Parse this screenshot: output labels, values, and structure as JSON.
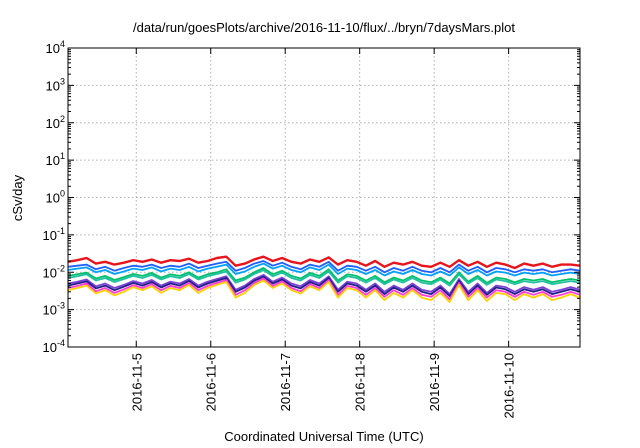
{
  "chart_data": {
    "type": "line",
    "title": "/data/run/goesPlots/archive/2016-11-10/flux/../bryn/7daysMars.plot",
    "xlabel": "Coordinated Universal Time (UTC)",
    "ylabel": "cSv/day",
    "yscale": "log",
    "ylim": [
      0.0001,
      10000
    ],
    "xlim": [
      "2016-11-04T02:00",
      "2016-11-10T23:00"
    ],
    "x_ticks": [
      "2016-11-5",
      "2016-11-6",
      "2016-11-7",
      "2016-11-8",
      "2016-11-9",
      "2016-11-10"
    ],
    "y_ticks": [
      {
        "base": "10",
        "exp": "-4"
      },
      {
        "base": "10",
        "exp": "-3"
      },
      {
        "base": "10",
        "exp": "-2"
      },
      {
        "base": "10",
        "exp": "-1"
      },
      {
        "base": "10",
        "exp": "0"
      },
      {
        "base": "10",
        "exp": "1"
      },
      {
        "base": "10",
        "exp": "2"
      },
      {
        "base": "10",
        "exp": "3"
      },
      {
        "base": "10",
        "exp": "4"
      }
    ],
    "grid": true,
    "legend": "none",
    "x": [
      "2016-11-04T02:00",
      "2016-11-04T05:00",
      "2016-11-04T08:00",
      "2016-11-04T11:00",
      "2016-11-04T14:00",
      "2016-11-04T17:00",
      "2016-11-04T20:00",
      "2016-11-04T23:00",
      "2016-11-05T02:00",
      "2016-11-05T05:00",
      "2016-11-05T08:00",
      "2016-11-05T11:00",
      "2016-11-05T14:00",
      "2016-11-05T17:00",
      "2016-11-05T20:00",
      "2016-11-05T23:00",
      "2016-11-06T02:00",
      "2016-11-06T05:00",
      "2016-11-06T08:00",
      "2016-11-06T11:00",
      "2016-11-06T14:00",
      "2016-11-06T17:00",
      "2016-11-06T20:00",
      "2016-11-06T23:00",
      "2016-11-07T02:00",
      "2016-11-07T05:00",
      "2016-11-07T08:00",
      "2016-11-07T11:00",
      "2016-11-07T14:00",
      "2016-11-07T17:00",
      "2016-11-07T20:00",
      "2016-11-07T23:00",
      "2016-11-08T02:00",
      "2016-11-08T05:00",
      "2016-11-08T08:00",
      "2016-11-08T11:00",
      "2016-11-08T14:00",
      "2016-11-08T17:00",
      "2016-11-08T20:00",
      "2016-11-08T23:00",
      "2016-11-09T02:00",
      "2016-11-09T05:00",
      "2016-11-09T08:00",
      "2016-11-09T11:00",
      "2016-11-09T14:00",
      "2016-11-09T17:00",
      "2016-11-09T20:00",
      "2016-11-09T23:00",
      "2016-11-10T02:00",
      "2016-11-10T05:00",
      "2016-11-10T08:00",
      "2016-11-10T11:00",
      "2016-11-10T14:00",
      "2016-11-10T17:00",
      "2016-11-10T20:00",
      "2016-11-10T23:00"
    ],
    "series": [
      {
        "color": "#e8141c",
        "values": [
          0.019,
          0.021,
          0.024,
          0.017,
          0.019,
          0.016,
          0.018,
          0.021,
          0.019,
          0.022,
          0.018,
          0.021,
          0.02,
          0.023,
          0.018,
          0.02,
          0.024,
          0.026,
          0.015,
          0.017,
          0.022,
          0.026,
          0.02,
          0.024,
          0.019,
          0.017,
          0.022,
          0.019,
          0.025,
          0.016,
          0.021,
          0.019,
          0.015,
          0.02,
          0.014,
          0.018,
          0.016,
          0.019,
          0.015,
          0.014,
          0.018,
          0.014,
          0.021,
          0.015,
          0.019,
          0.014,
          0.018,
          0.016,
          0.013,
          0.017,
          0.015,
          0.017,
          0.014,
          0.016,
          0.016,
          0.015
        ]
      },
      {
        "color": "#1f5fff",
        "values": [
          0.014,
          0.015,
          0.016,
          0.012,
          0.014,
          0.011,
          0.013,
          0.015,
          0.014,
          0.016,
          0.013,
          0.015,
          0.014,
          0.017,
          0.013,
          0.015,
          0.017,
          0.019,
          0.011,
          0.013,
          0.017,
          0.02,
          0.015,
          0.018,
          0.014,
          0.012,
          0.016,
          0.014,
          0.019,
          0.011,
          0.015,
          0.014,
          0.011,
          0.014,
          0.01,
          0.013,
          0.011,
          0.014,
          0.011,
          0.01,
          0.013,
          0.01,
          0.016,
          0.011,
          0.014,
          0.01,
          0.013,
          0.012,
          0.01,
          0.012,
          0.011,
          0.012,
          0.01,
          0.011,
          0.012,
          0.011
        ]
      },
      {
        "color": "#00a0ff",
        "values": [
          0.0115,
          0.0125,
          0.0135,
          0.01,
          0.0115,
          0.009,
          0.0105,
          0.0125,
          0.0115,
          0.0135,
          0.0105,
          0.0125,
          0.0115,
          0.014,
          0.0105,
          0.0125,
          0.014,
          0.016,
          0.009,
          0.0105,
          0.014,
          0.017,
          0.0125,
          0.015,
          0.0115,
          0.01,
          0.0135,
          0.0115,
          0.016,
          0.009,
          0.0125,
          0.0115,
          0.009,
          0.0115,
          0.0082,
          0.0105,
          0.009,
          0.0115,
          0.009,
          0.0082,
          0.0105,
          0.0082,
          0.0135,
          0.009,
          0.0115,
          0.0082,
          0.0105,
          0.0098,
          0.0082,
          0.0098,
          0.009,
          0.0098,
          0.0082,
          0.009,
          0.0098,
          0.009
        ]
      },
      {
        "color": "#00c06a",
        "values": [
          0.008,
          0.0088,
          0.0098,
          0.0068,
          0.008,
          0.0062,
          0.0074,
          0.009,
          0.008,
          0.0096,
          0.0072,
          0.0088,
          0.008,
          0.01,
          0.0072,
          0.0088,
          0.01,
          0.012,
          0.006,
          0.0072,
          0.01,
          0.013,
          0.0088,
          0.011,
          0.008,
          0.0068,
          0.0096,
          0.008,
          0.012,
          0.006,
          0.0088,
          0.008,
          0.006,
          0.008,
          0.0054,
          0.0072,
          0.006,
          0.008,
          0.006,
          0.0054,
          0.0072,
          0.005,
          0.01,
          0.0056,
          0.008,
          0.0052,
          0.0072,
          0.0066,
          0.0054,
          0.0066,
          0.006,
          0.0066,
          0.0054,
          0.006,
          0.0066,
          0.006
        ]
      },
      {
        "color": "#20c0a0",
        "values": [
          0.007,
          0.0078,
          0.0088,
          0.006,
          0.007,
          0.0055,
          0.0066,
          0.008,
          0.007,
          0.0085,
          0.0064,
          0.0078,
          0.007,
          0.009,
          0.0064,
          0.0078,
          0.009,
          0.0105,
          0.0053,
          0.0064,
          0.009,
          0.0115,
          0.0078,
          0.0098,
          0.007,
          0.006,
          0.0085,
          0.007,
          0.0105,
          0.0053,
          0.0078,
          0.007,
          0.0053,
          0.007,
          0.0048,
          0.0064,
          0.0053,
          0.007,
          0.0053,
          0.0048,
          0.0064,
          0.0044,
          0.0088,
          0.005,
          0.007,
          0.0046,
          0.0064,
          0.0058,
          0.0048,
          0.0058,
          0.0053,
          0.0058,
          0.0048,
          0.0053,
          0.0058,
          0.0053
        ]
      },
      {
        "color": "#7b3fd6",
        "values": [
          0.005,
          0.0056,
          0.0064,
          0.0042,
          0.005,
          0.0038,
          0.0046,
          0.0058,
          0.005,
          0.0062,
          0.0044,
          0.0056,
          0.005,
          0.0066,
          0.0044,
          0.0056,
          0.0066,
          0.0078,
          0.0034,
          0.0044,
          0.0066,
          0.0085,
          0.0056,
          0.0072,
          0.005,
          0.0042,
          0.0062,
          0.005,
          0.0078,
          0.0034,
          0.0056,
          0.005,
          0.0034,
          0.005,
          0.003,
          0.0044,
          0.0034,
          0.005,
          0.0034,
          0.003,
          0.0044,
          0.0026,
          0.0066,
          0.003,
          0.005,
          0.0028,
          0.0044,
          0.004,
          0.003,
          0.004,
          0.0034,
          0.004,
          0.003,
          0.0034,
          0.004,
          0.0034
        ]
      },
      {
        "color": "#20208a",
        "values": [
          0.0044,
          0.005,
          0.0057,
          0.0037,
          0.0044,
          0.0033,
          0.0041,
          0.0052,
          0.0044,
          0.0055,
          0.0039,
          0.005,
          0.0044,
          0.0059,
          0.0039,
          0.005,
          0.0059,
          0.007,
          0.003,
          0.0039,
          0.0059,
          0.0076,
          0.005,
          0.0064,
          0.0044,
          0.0037,
          0.0055,
          0.0044,
          0.007,
          0.003,
          0.005,
          0.0044,
          0.003,
          0.0044,
          0.0026,
          0.0039,
          0.003,
          0.0044,
          0.003,
          0.0026,
          0.0039,
          0.0023,
          0.0059,
          0.0026,
          0.0044,
          0.0025,
          0.0039,
          0.0035,
          0.0026,
          0.0035,
          0.003,
          0.0035,
          0.0026,
          0.003,
          0.0035,
          0.003
        ]
      },
      {
        "color": "#ff3ad8",
        "values": [
          0.0038,
          0.0043,
          0.005,
          0.0031,
          0.0038,
          0.0028,
          0.0035,
          0.0045,
          0.0038,
          0.0048,
          0.0033,
          0.0043,
          0.0038,
          0.0052,
          0.0033,
          0.0043,
          0.0052,
          0.0062,
          0.0025,
          0.0033,
          0.0052,
          0.0068,
          0.0043,
          0.0057,
          0.0038,
          0.0031,
          0.0048,
          0.0038,
          0.0062,
          0.0025,
          0.0043,
          0.0038,
          0.0025,
          0.0038,
          0.0022,
          0.0033,
          0.0025,
          0.0038,
          0.0025,
          0.0022,
          0.0033,
          0.0019,
          0.0052,
          0.0022,
          0.0038,
          0.0021,
          0.0033,
          0.003,
          0.0022,
          0.003,
          0.0025,
          0.003,
          0.0022,
          0.0025,
          0.003,
          0.0025
        ]
      },
      {
        "color": "#ffd000",
        "values": [
          0.0033,
          0.0038,
          0.0044,
          0.0027,
          0.0033,
          0.0024,
          0.003,
          0.004,
          0.0033,
          0.0042,
          0.0028,
          0.0038,
          0.0033,
          0.0046,
          0.0028,
          0.0038,
          0.0046,
          0.0055,
          0.0021,
          0.0028,
          0.0046,
          0.006,
          0.0038,
          0.005,
          0.0033,
          0.0027,
          0.0042,
          0.0033,
          0.0055,
          0.0021,
          0.0038,
          0.0033,
          0.0021,
          0.0033,
          0.0018,
          0.0028,
          0.0021,
          0.0033,
          0.0021,
          0.0018,
          0.0028,
          0.0016,
          0.0046,
          0.0018,
          0.0033,
          0.0017,
          0.0028,
          0.0026,
          0.0018,
          0.0026,
          0.0021,
          0.0026,
          0.0018,
          0.0021,
          0.0026,
          0.0021
        ]
      }
    ]
  }
}
